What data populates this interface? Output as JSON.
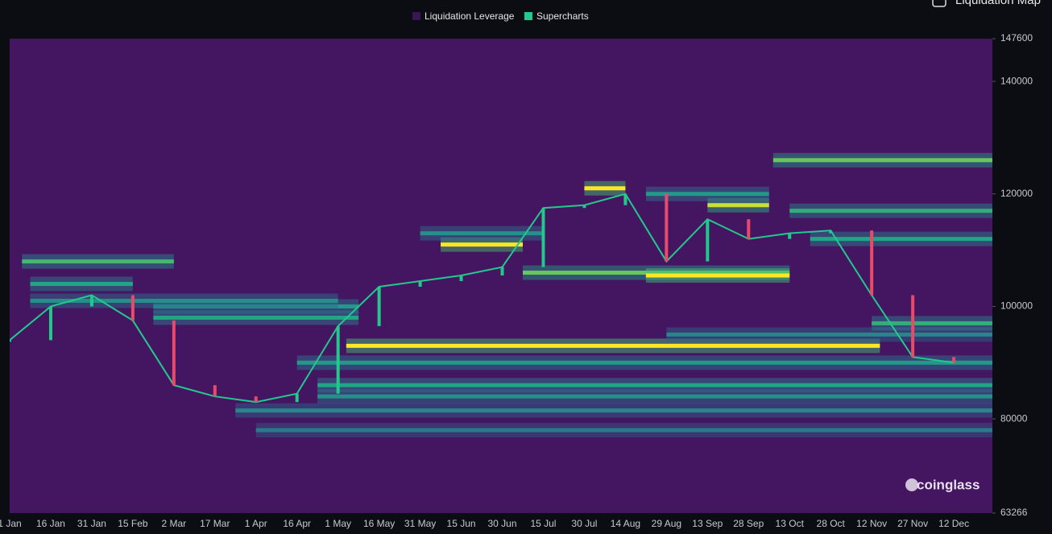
{
  "chart_data": {
    "type": "heatmap",
    "toggle_label": "Liquidation Map",
    "watermark": "coinglass",
    "categories": [
      "1 Jan",
      "16 Jan",
      "31 Jan",
      "15 Feb",
      "2 Mar",
      "17 Mar",
      "1 Apr",
      "16 Apr",
      "1 May",
      "16 May",
      "31 May",
      "15 Jun",
      "30 Jun",
      "15 Jul",
      "30 Jul",
      "14 Aug",
      "29 Aug",
      "13 Sep",
      "28 Sep",
      "13 Oct",
      "28 Oct",
      "12 Nov",
      "27 Nov",
      "12 Dec"
    ],
    "ylim": [
      63266,
      147600
    ],
    "yticks": [
      63266,
      80000,
      100000,
      120000,
      140000,
      147600
    ],
    "background": "#441560",
    "colorscale": [
      "#3d1160",
      "#2c6f8e",
      "#21a585",
      "#7ad151",
      "#fde725"
    ],
    "series": [
      {
        "name": "Liquidation Leverage",
        "color": "#3a1656",
        "bands": [
          {
            "price": 93000,
            "from": 8.2,
            "to": 21.2,
            "level": 1
          },
          {
            "price": 108000,
            "from": 0.3,
            "to": 4,
            "level": 0.6
          },
          {
            "price": 106000,
            "from": 12.5,
            "to": 19,
            "level": 0.7
          },
          {
            "price": 105500,
            "from": 15.5,
            "to": 19,
            "level": 1
          },
          {
            "price": 111000,
            "from": 10.5,
            "to": 12.5,
            "level": 1
          },
          {
            "price": 121000,
            "from": 14,
            "to": 15,
            "level": 1
          },
          {
            "price": 118000,
            "from": 17,
            "to": 18.5,
            "level": 0.9
          },
          {
            "price": 126000,
            "from": 18.6,
            "to": 24,
            "level": 0.7
          },
          {
            "price": 117000,
            "from": 19,
            "to": 24,
            "level": 0.55
          },
          {
            "price": 112000,
            "from": 19.5,
            "to": 24,
            "level": 0.5
          },
          {
            "price": 98000,
            "from": 3.5,
            "to": 8.5,
            "level": 0.5
          },
          {
            "price": 100000,
            "from": 3.5,
            "to": 8.5,
            "level": 0.45
          },
          {
            "price": 90000,
            "from": 7,
            "to": 24,
            "level": 0.45
          },
          {
            "price": 86000,
            "from": 7.5,
            "to": 24,
            "level": 0.5
          },
          {
            "price": 84000,
            "from": 7.5,
            "to": 24,
            "level": 0.4
          },
          {
            "price": 81500,
            "from": 5.5,
            "to": 24,
            "level": 0.35
          },
          {
            "price": 78000,
            "from": 6,
            "to": 24,
            "level": 0.3
          },
          {
            "price": 95000,
            "from": 16,
            "to": 24,
            "level": 0.35
          },
          {
            "price": 97000,
            "from": 21,
            "to": 24,
            "level": 0.55
          },
          {
            "price": 101000,
            "from": 0.5,
            "to": 8,
            "level": 0.4
          },
          {
            "price": 104000,
            "from": 0.5,
            "to": 3,
            "level": 0.5
          },
          {
            "price": 113000,
            "from": 10,
            "to": 13,
            "level": 0.4
          },
          {
            "price": 120000,
            "from": 15.5,
            "to": 18.5,
            "level": 0.45
          }
        ]
      },
      {
        "name": "Supercharts",
        "color": "#22c98c",
        "values": [
          94000,
          100000,
          102000,
          97500,
          86000,
          84000,
          83000,
          84500,
          96500,
          103500,
          104500,
          105500,
          107000,
          117500,
          118000,
          120000,
          108000,
          115500,
          112000,
          113000,
          113500,
          102000,
          91000,
          90000
        ]
      }
    ]
  }
}
